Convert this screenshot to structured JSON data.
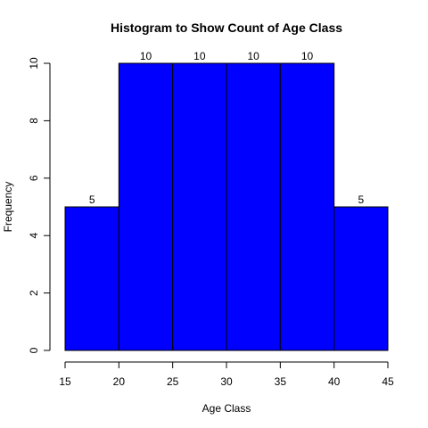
{
  "chart_data": {
    "type": "bar",
    "title": "Histogram to Show Count of Age Class",
    "xlabel": "Age Class",
    "ylabel": "Frequency",
    "bins": [
      {
        "start": 15,
        "end": 20,
        "count": 5
      },
      {
        "start": 20,
        "end": 25,
        "count": 10
      },
      {
        "start": 25,
        "end": 30,
        "count": 10
      },
      {
        "start": 30,
        "end": 35,
        "count": 10
      },
      {
        "start": 35,
        "end": 40,
        "count": 10
      },
      {
        "start": 40,
        "end": 45,
        "count": 5
      }
    ],
    "data_labels": [
      "5",
      "10",
      "10",
      "10",
      "10",
      "5"
    ],
    "xlim": [
      15,
      45
    ],
    "ylim": [
      0,
      10
    ],
    "xticks": [
      "15",
      "20",
      "25",
      "30",
      "35",
      "40",
      "45"
    ],
    "yticks": [
      "0",
      "2",
      "4",
      "6",
      "8",
      "10"
    ],
    "bar_color": "#0000ff",
    "grid": false,
    "legend": "none"
  }
}
